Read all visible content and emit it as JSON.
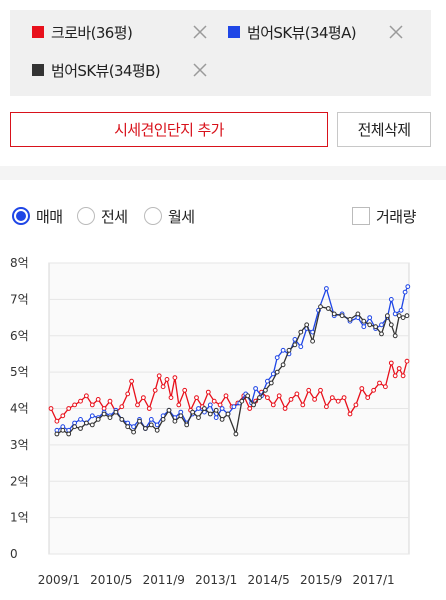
{
  "legend_items": [
    {
      "label": "크로바(36평)",
      "color": "#e8101b"
    },
    {
      "label": "범어SK뷰(34평A)",
      "color": "#1f46e6"
    },
    {
      "label": "범어SK뷰(34평B)",
      "color": "#333333"
    }
  ],
  "buttons": {
    "add": "시세견인단지 추가",
    "delete_all": "전체삭제"
  },
  "price_types": [
    {
      "label": "매매",
      "selected": true
    },
    {
      "label": "전세",
      "selected": false
    },
    {
      "label": "월세",
      "selected": false
    }
  ],
  "trade_volume": {
    "label": "거래량",
    "checked": false
  },
  "chart_data": {
    "type": "line",
    "y_ticks": [
      "0",
      "1억",
      "2억",
      "3억",
      "4억",
      "5억",
      "6억",
      "7억",
      "8억"
    ],
    "x_ticks": [
      "2009/1",
      "2010/5",
      "2011/9",
      "2013/1",
      "2014/5",
      "2015/9",
      "2017/1"
    ],
    "x_tick_years": [
      2009.0,
      2010.333,
      2011.667,
      2013.0,
      2014.333,
      2015.667,
      2017.0
    ],
    "xlim": [
      2008.75,
      2017.9
    ],
    "ylim": [
      0,
      8
    ],
    "grid": true,
    "series": [
      {
        "name": "크로바(36평)",
        "color": "#e8101b",
        "points": [
          [
            2008.8,
            4.0
          ],
          [
            2008.95,
            3.65
          ],
          [
            2009.1,
            3.8
          ],
          [
            2009.25,
            4.0
          ],
          [
            2009.4,
            4.1
          ],
          [
            2009.55,
            4.2
          ],
          [
            2009.7,
            4.35
          ],
          [
            2009.85,
            4.1
          ],
          [
            2010.0,
            4.25
          ],
          [
            2010.15,
            4.0
          ],
          [
            2010.3,
            4.2
          ],
          [
            2010.45,
            3.9
          ],
          [
            2010.6,
            4.05
          ],
          [
            2010.75,
            4.4
          ],
          [
            2010.85,
            4.75
          ],
          [
            2011.0,
            4.1
          ],
          [
            2011.15,
            4.3
          ],
          [
            2011.3,
            4.0
          ],
          [
            2011.45,
            4.5
          ],
          [
            2011.55,
            4.9
          ],
          [
            2011.65,
            4.6
          ],
          [
            2011.75,
            4.8
          ],
          [
            2011.85,
            4.3
          ],
          [
            2011.95,
            4.85
          ],
          [
            2012.05,
            4.1
          ],
          [
            2012.2,
            4.5
          ],
          [
            2012.35,
            3.95
          ],
          [
            2012.5,
            4.3
          ],
          [
            2012.65,
            4.05
          ],
          [
            2012.8,
            4.45
          ],
          [
            2012.95,
            4.2
          ],
          [
            2013.1,
            4.1
          ],
          [
            2013.25,
            4.35
          ],
          [
            2013.4,
            4.05
          ],
          [
            2013.55,
            4.15
          ],
          [
            2013.7,
            4.35
          ],
          [
            2013.85,
            4.0
          ],
          [
            2014.0,
            4.2
          ],
          [
            2014.15,
            4.45
          ],
          [
            2014.3,
            4.3
          ],
          [
            2014.45,
            4.1
          ],
          [
            2014.6,
            4.35
          ],
          [
            2014.75,
            4.0
          ],
          [
            2014.9,
            4.25
          ],
          [
            2015.05,
            4.4
          ],
          [
            2015.2,
            4.1
          ],
          [
            2015.35,
            4.5
          ],
          [
            2015.5,
            4.25
          ],
          [
            2015.65,
            4.5
          ],
          [
            2015.8,
            4.05
          ],
          [
            2015.95,
            4.3
          ],
          [
            2016.1,
            4.2
          ],
          [
            2016.25,
            4.3
          ],
          [
            2016.4,
            3.85
          ],
          [
            2016.55,
            4.1
          ],
          [
            2016.7,
            4.55
          ],
          [
            2016.85,
            4.3
          ],
          [
            2017.0,
            4.5
          ],
          [
            2017.15,
            4.7
          ],
          [
            2017.3,
            4.6
          ],
          [
            2017.45,
            5.25
          ],
          [
            2017.55,
            4.9
          ],
          [
            2017.65,
            5.1
          ],
          [
            2017.75,
            4.9
          ],
          [
            2017.85,
            5.3
          ]
        ]
      },
      {
        "name": "범어SK뷰(34평A)",
        "color": "#1f46e6",
        "points": [
          [
            2008.95,
            3.4
          ],
          [
            2009.1,
            3.5
          ],
          [
            2009.25,
            3.4
          ],
          [
            2009.4,
            3.6
          ],
          [
            2009.55,
            3.7
          ],
          [
            2009.7,
            3.6
          ],
          [
            2009.85,
            3.8
          ],
          [
            2010.0,
            3.75
          ],
          [
            2010.15,
            3.9
          ],
          [
            2010.3,
            3.8
          ],
          [
            2010.45,
            3.95
          ],
          [
            2010.6,
            3.7
          ],
          [
            2010.75,
            3.6
          ],
          [
            2010.9,
            3.5
          ],
          [
            2011.05,
            3.7
          ],
          [
            2011.2,
            3.45
          ],
          [
            2011.35,
            3.7
          ],
          [
            2011.5,
            3.55
          ],
          [
            2011.65,
            3.8
          ],
          [
            2011.8,
            3.95
          ],
          [
            2011.95,
            3.75
          ],
          [
            2012.1,
            3.9
          ],
          [
            2012.25,
            3.6
          ],
          [
            2012.4,
            3.85
          ],
          [
            2012.55,
            4.0
          ],
          [
            2012.7,
            3.9
          ],
          [
            2012.85,
            4.1
          ],
          [
            2013.0,
            3.75
          ],
          [
            2013.15,
            4.0
          ],
          [
            2013.3,
            3.85
          ],
          [
            2013.45,
            4.05
          ],
          [
            2013.6,
            4.15
          ],
          [
            2013.75,
            4.4
          ],
          [
            2013.9,
            4.15
          ],
          [
            2014.0,
            4.55
          ],
          [
            2014.15,
            4.35
          ],
          [
            2014.3,
            4.75
          ],
          [
            2014.45,
            4.95
          ],
          [
            2014.55,
            5.4
          ],
          [
            2014.7,
            5.6
          ],
          [
            2014.85,
            5.5
          ],
          [
            2015.0,
            5.9
          ],
          [
            2015.15,
            5.7
          ],
          [
            2015.3,
            6.2
          ],
          [
            2015.45,
            6.1
          ],
          [
            2015.6,
            6.7
          ],
          [
            2015.8,
            7.3
          ],
          [
            2016.0,
            6.55
          ],
          [
            2016.2,
            6.6
          ],
          [
            2016.4,
            6.4
          ],
          [
            2016.6,
            6.5
          ],
          [
            2016.75,
            6.25
          ],
          [
            2016.9,
            6.5
          ],
          [
            2017.05,
            6.2
          ],
          [
            2017.2,
            6.3
          ],
          [
            2017.35,
            6.5
          ],
          [
            2017.45,
            7.0
          ],
          [
            2017.55,
            6.6
          ],
          [
            2017.7,
            6.7
          ],
          [
            2017.8,
            7.2
          ],
          [
            2017.87,
            7.35
          ]
        ]
      },
      {
        "name": "범어SK뷰(34평B)",
        "color": "#333333",
        "points": [
          [
            2008.95,
            3.3
          ],
          [
            2009.1,
            3.4
          ],
          [
            2009.25,
            3.3
          ],
          [
            2009.4,
            3.5
          ],
          [
            2009.55,
            3.45
          ],
          [
            2009.7,
            3.6
          ],
          [
            2009.85,
            3.55
          ],
          [
            2010.0,
            3.7
          ],
          [
            2010.15,
            3.85
          ],
          [
            2010.3,
            3.75
          ],
          [
            2010.45,
            3.9
          ],
          [
            2010.6,
            3.7
          ],
          [
            2010.75,
            3.5
          ],
          [
            2010.9,
            3.35
          ],
          [
            2011.05,
            3.65
          ],
          [
            2011.2,
            3.45
          ],
          [
            2011.35,
            3.55
          ],
          [
            2011.5,
            3.4
          ],
          [
            2011.65,
            3.7
          ],
          [
            2011.8,
            3.95
          ],
          [
            2011.95,
            3.65
          ],
          [
            2012.1,
            3.8
          ],
          [
            2012.25,
            3.55
          ],
          [
            2012.4,
            3.9
          ],
          [
            2012.55,
            3.75
          ],
          [
            2012.7,
            4.0
          ],
          [
            2012.85,
            3.85
          ],
          [
            2013.0,
            3.95
          ],
          [
            2013.15,
            3.7
          ],
          [
            2013.3,
            3.85
          ],
          [
            2013.5,
            3.3
          ],
          [
            2013.65,
            4.2
          ],
          [
            2013.8,
            4.35
          ],
          [
            2013.95,
            4.1
          ],
          [
            2014.1,
            4.3
          ],
          [
            2014.25,
            4.5
          ],
          [
            2014.4,
            4.7
          ],
          [
            2014.55,
            5.0
          ],
          [
            2014.7,
            5.2
          ],
          [
            2014.85,
            5.6
          ],
          [
            2015.0,
            5.75
          ],
          [
            2015.15,
            6.1
          ],
          [
            2015.3,
            6.3
          ],
          [
            2015.45,
            5.85
          ],
          [
            2015.65,
            6.8
          ],
          [
            2015.85,
            6.75
          ],
          [
            2016.0,
            6.6
          ],
          [
            2016.2,
            6.55
          ],
          [
            2016.4,
            6.45
          ],
          [
            2016.6,
            6.6
          ],
          [
            2016.75,
            6.4
          ],
          [
            2016.9,
            6.3
          ],
          [
            2017.05,
            6.25
          ],
          [
            2017.2,
            6.05
          ],
          [
            2017.35,
            6.55
          ],
          [
            2017.45,
            6.3
          ],
          [
            2017.55,
            6.0
          ],
          [
            2017.65,
            6.55
          ],
          [
            2017.75,
            6.5
          ],
          [
            2017.85,
            6.55
          ]
        ]
      }
    ]
  }
}
